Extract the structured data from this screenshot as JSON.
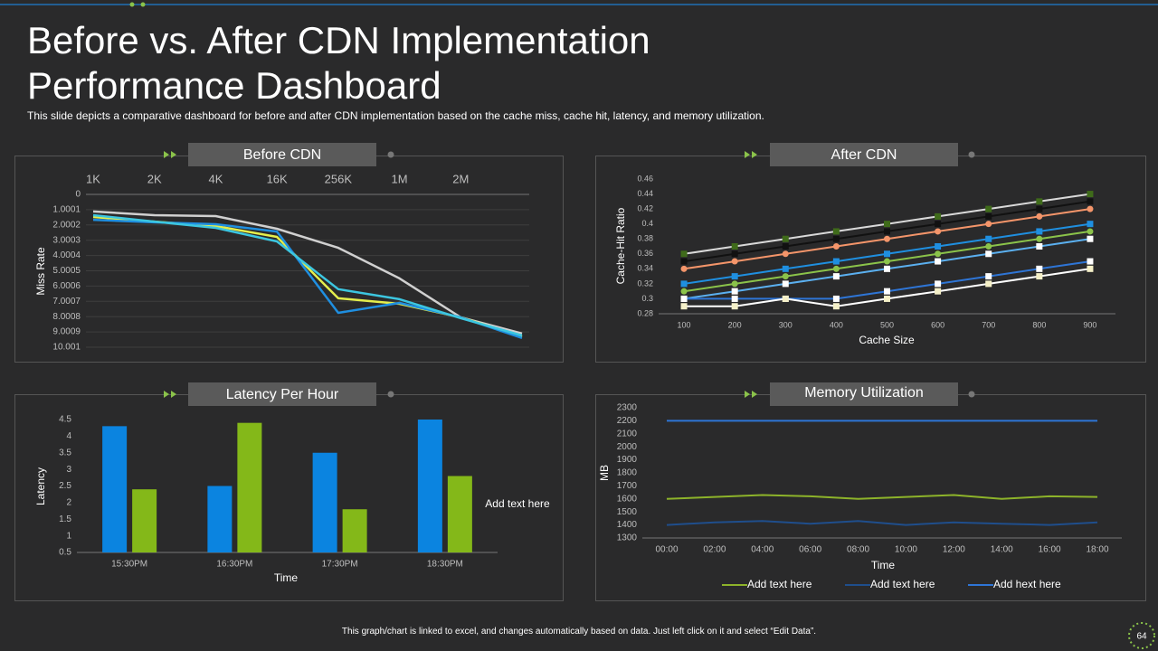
{
  "title": "Before vs. After CDN Implementation Performance Dashboard",
  "subtitle": "This slide depicts a comparative dashboard for before and after CDN implementation based on the cache miss, cache hit, latency, and memory utilization.",
  "footer": "This graph/chart is linked to excel, and changes automatically based on data. Just left click on it and select “Edit Data”.",
  "page_number": "64",
  "chart_data": [
    {
      "type": "line",
      "title": "Before CDN",
      "ylabel": "Miss Rate",
      "categories": [
        "1K",
        "2K",
        "4K",
        "16K",
        "256K",
        "1M",
        "2M",
        null
      ],
      "x_axis_position": "top",
      "y_reversed": true,
      "ylim": [
        0,
        10.001
      ],
      "yticks": [
        0,
        1.0001,
        2.0002,
        3.0003,
        4.0004,
        5.0005,
        6.0006,
        7.0007,
        8.0008,
        9.0009,
        10.001
      ],
      "grid": true,
      "series": [
        {
          "color": "#d0d0d0",
          "values": [
            1.12,
            1.36,
            1.42,
            2.25,
            3.5,
            5.5,
            8.05,
            9.1
          ]
        },
        {
          "color": "#e4ee4c",
          "values": [
            1.48,
            1.78,
            2.07,
            2.78,
            6.8,
            7.16,
            8.05,
            9.3
          ]
        },
        {
          "color": "#1f8fe0",
          "values": [
            1.66,
            1.83,
            1.95,
            2.43,
            7.75,
            7.1,
            8.05,
            9.4
          ]
        },
        {
          "color": "#3cc6e0",
          "values": [
            1.36,
            1.78,
            2.19,
            3.08,
            6.2,
            6.86,
            8.1,
            9.23
          ]
        }
      ]
    },
    {
      "type": "line",
      "title": "After CDN",
      "xlabel": "Cache Size",
      "ylabel": "Cache-Hit Ratio",
      "categories": [
        "100",
        "200",
        "300",
        "400",
        "500",
        "600",
        "700",
        "800",
        "900"
      ],
      "ylim": [
        0.28,
        0.46
      ],
      "yticks": [
        0.28,
        0.3,
        0.32,
        0.34,
        0.36,
        0.38,
        0.4,
        0.42,
        0.44,
        0.46
      ],
      "grid": false,
      "series": [
        {
          "color": "#d9d9d9",
          "marker": "square",
          "marker_color": "#3f6b1a",
          "values": [
            0.36,
            0.37,
            0.38,
            0.39,
            0.4,
            0.41,
            0.42,
            0.43,
            0.44
          ]
        },
        {
          "color": "#111111",
          "marker": "square",
          "marker_color": "#111111",
          "values": [
            0.35,
            0.36,
            0.37,
            0.38,
            0.39,
            0.4,
            0.41,
            0.42,
            0.43
          ]
        },
        {
          "color": "#f4956a",
          "marker": "circle",
          "marker_color": "#f4956a",
          "values": [
            0.34,
            0.35,
            0.36,
            0.37,
            0.38,
            0.39,
            0.4,
            0.41,
            0.42
          ]
        },
        {
          "color": "#1f8fe0",
          "marker": "square",
          "marker_color": "#1f8fe0",
          "values": [
            0.32,
            0.33,
            0.34,
            0.35,
            0.36,
            0.37,
            0.38,
            0.39,
            0.4
          ]
        },
        {
          "color": "#8bc34a",
          "marker": "circle",
          "marker_color": "#8bc34a",
          "values": [
            0.31,
            0.32,
            0.33,
            0.34,
            0.35,
            0.36,
            0.37,
            0.38,
            0.39
          ]
        },
        {
          "color": "#5bb0f0",
          "marker": "square",
          "marker_color": "#ffffff",
          "values": [
            0.3,
            0.31,
            0.32,
            0.33,
            0.34,
            0.35,
            0.36,
            0.37,
            0.38
          ]
        },
        {
          "color": "#2e75d6",
          "marker": "square",
          "marker_color": "#ffffff",
          "values": [
            0.3,
            0.3,
            0.3,
            0.3,
            0.31,
            0.32,
            0.33,
            0.34,
            0.35
          ]
        },
        {
          "color": "#ffffff",
          "marker": "square",
          "marker_color": "#f5f0c8",
          "values": [
            0.29,
            0.29,
            0.3,
            0.29,
            0.3,
            0.31,
            0.32,
            0.33,
            0.34
          ]
        }
      ]
    },
    {
      "type": "bar",
      "title": "Latency Per Hour",
      "xlabel": "Time",
      "ylabel": "Latency",
      "annotation": "Add text here",
      "categories": [
        "15:30PM",
        "16:30PM",
        "17:30PM",
        "18:30PM"
      ],
      "ylim": [
        0.5,
        4.5
      ],
      "yticks": [
        0.5,
        1,
        1.5,
        2,
        2.5,
        3,
        3.5,
        4,
        4.5
      ],
      "grid": false,
      "series": [
        {
          "color": "#0b84e0",
          "values": [
            4.3,
            2.5,
            3.5,
            4.5
          ]
        },
        {
          "color": "#84b819",
          "values": [
            2.4,
            4.4,
            1.8,
            2.8
          ]
        }
      ]
    },
    {
      "type": "line",
      "title": "Memory Utilization",
      "xlabel": "Time",
      "ylabel": "MB",
      "categories": [
        "00:00",
        "02:00",
        "04:00",
        "06:00",
        "08:00",
        "10:00",
        "12:00",
        "14:00",
        "16:00",
        "18:00"
      ],
      "ylim": [
        1300,
        2300
      ],
      "yticks": [
        1300,
        1400,
        1500,
        1600,
        1700,
        1800,
        1900,
        2000,
        2100,
        2200,
        2300
      ],
      "grid": false,
      "legend": "bottom",
      "series": [
        {
          "name": "Add text here",
          "color": "#8db32a",
          "values": [
            1600,
            1615,
            1630,
            1620,
            1600,
            1615,
            1630,
            1600,
            1620,
            1615
          ]
        },
        {
          "name": "Add text here",
          "color": "#1f4e8c",
          "values": [
            1400,
            1420,
            1430,
            1410,
            1430,
            1400,
            1420,
            1410,
            1400,
            1420
          ]
        },
        {
          "name": "Add hext here",
          "color": "#2e75d6",
          "values": [
            2200,
            2200,
            2200,
            2200,
            2200,
            2200,
            2200,
            2200,
            2200,
            2200
          ]
        }
      ]
    }
  ]
}
